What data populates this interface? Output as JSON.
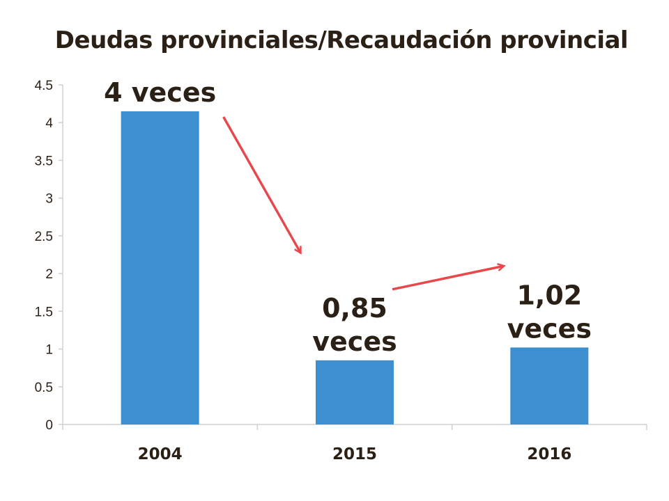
{
  "chart_data": {
    "type": "bar",
    "title": "Deudas provinciales/Recaudación provincial",
    "xlabel": "",
    "ylabel": "",
    "categories": [
      "2004",
      "2015",
      "2016"
    ],
    "values": [
      4.15,
      0.85,
      1.02
    ],
    "ylim": [
      0,
      4.5
    ],
    "yticks": [
      "0",
      "0.5",
      "1",
      "1.5",
      "2",
      "2.5",
      "3",
      "3.5",
      "4",
      "4.5"
    ],
    "data_labels": [
      [
        "4 veces"
      ],
      [
        "0,85",
        "veces"
      ],
      [
        "1,02",
        "veces"
      ]
    ],
    "annotations": [
      {
        "type": "arrow",
        "from": "2004",
        "to": "2015"
      },
      {
        "type": "arrow",
        "from": "2015",
        "to": "2016"
      }
    ],
    "grid": false,
    "legend": "none",
    "colors": {
      "bar": "#3d8fd0",
      "arrow": "#e8474b",
      "axis": "#d0d0d0",
      "text": "#2b2015"
    }
  }
}
